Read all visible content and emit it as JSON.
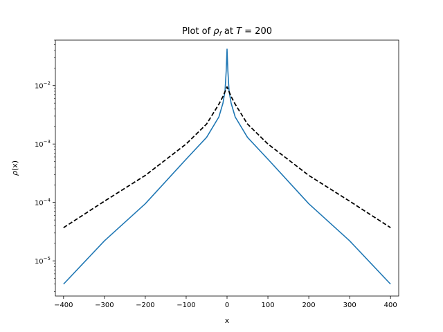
{
  "chart_data": {
    "type": "line",
    "title_parts": {
      "prefix": "Plot of ",
      "rho": "ρ",
      "sub": "f",
      "mid": " at ",
      "T": "T",
      "eq": " = 200"
    },
    "xlabel": "x",
    "ylabel_parts": {
      "rho": "ρ",
      "arg": "(x)"
    },
    "xlim": [
      -420,
      420
    ],
    "ylim": [
      2.5e-06,
      0.06
    ],
    "yscale": "log",
    "grid": false,
    "xticks": [
      -400,
      -300,
      -200,
      -100,
      0,
      100,
      200,
      300,
      400
    ],
    "xtick_labels": [
      "−400",
      "−300",
      "−200",
      "−100",
      "0",
      "100",
      "200",
      "300",
      "400"
    ],
    "yticks": [
      {
        "base": "10",
        "exp": "−5",
        "value": 1e-05
      },
      {
        "base": "10",
        "exp": "−4",
        "value": 0.0001
      },
      {
        "base": "10",
        "exp": "−3",
        "value": 0.001
      },
      {
        "base": "10",
        "exp": "−2",
        "value": 0.01
      }
    ],
    "series": [
      {
        "style": "solid",
        "color": "#1f77b4",
        "x": [
          -400,
          -300,
          -200,
          -100,
          -50,
          -20,
          -10,
          -5,
          -2,
          0,
          2,
          5,
          10,
          20,
          50,
          100,
          200,
          300,
          400
        ],
        "y": [
          4e-06,
          2.2e-05,
          9.5e-05,
          0.00055,
          0.0013,
          0.0029,
          0.005,
          0.008,
          0.018,
          0.042,
          0.018,
          0.008,
          0.005,
          0.0029,
          0.0013,
          0.00055,
          9.5e-05,
          2.2e-05,
          4e-06
        ]
      },
      {
        "style": "dashed",
        "color": "#000000",
        "x": [
          -400,
          -300,
          -200,
          -100,
          -50,
          -20,
          -10,
          0,
          10,
          20,
          50,
          100,
          200,
          300,
          400
        ],
        "y": [
          3.7e-05,
          0.000105,
          0.00029,
          0.001,
          0.0022,
          0.0048,
          0.0065,
          0.0095,
          0.0065,
          0.0048,
          0.0022,
          0.001,
          0.00029,
          0.000105,
          3.7e-05
        ]
      }
    ]
  }
}
